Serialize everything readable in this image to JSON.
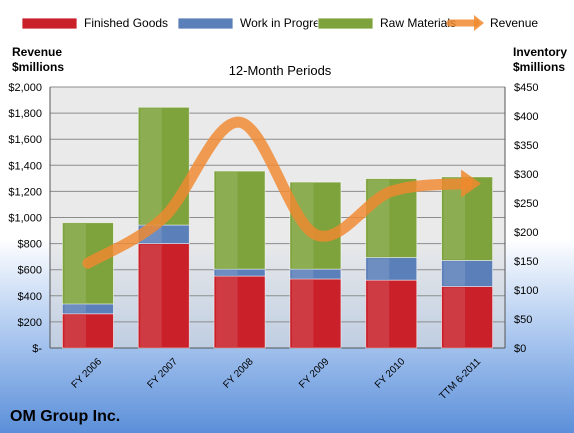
{
  "colors": {
    "finished_goods": "#c9202a",
    "work_in_progress": "#5b7fb9",
    "raw_materials": "#7ea23c",
    "revenue": "#f0892e",
    "bg_top": "#ffffff",
    "bg_bottom": "#5b8fd9"
  },
  "chart_data": {
    "type": "bar",
    "stacked": true,
    "title": "12-Month Periods",
    "company": "OM Group Inc.",
    "categories": [
      "FY 2006",
      "FY 2007",
      "FY 2008",
      "FY 2009",
      "FY 2010",
      "TTM 6-2011"
    ],
    "left_axis": {
      "label_line1": "Revenue",
      "label_line2": "$millions",
      "ticks": [
        "$-",
        "$200",
        "$400",
        "$600",
        "$800",
        "$1,000",
        "$1,200",
        "$1,400",
        "$1,600",
        "$1,800",
        "$2,000"
      ],
      "range": [
        0,
        2000
      ]
    },
    "right_axis": {
      "label_line1": "Inventory",
      "label_line2": "$millions",
      "ticks": [
        "$0",
        "$50",
        "$100",
        "$150",
        "$200",
        "$250",
        "$300",
        "$350",
        "$400",
        "$450"
      ],
      "range": [
        0,
        450
      ]
    },
    "legend": {
      "position": "top",
      "items": [
        {
          "label": "Finished Goods",
          "type": "bar",
          "color_key": "finished_goods"
        },
        {
          "label": "Work in Progress",
          "type": "bar",
          "color_key": "work_in_progress"
        },
        {
          "label": "Raw Materials",
          "type": "bar",
          "color_key": "raw_materials"
        },
        {
          "label": "Revenue",
          "type": "line",
          "color_key": "revenue"
        }
      ]
    },
    "series": [
      {
        "name": "Finished Goods",
        "axis": "right",
        "values": [
          59,
          180,
          124,
          119,
          117,
          106
        ]
      },
      {
        "name": "Work in Progress",
        "axis": "right",
        "values": [
          17,
          32,
          12,
          17,
          39,
          45
        ]
      },
      {
        "name": "Raw Materials",
        "axis": "right",
        "values": [
          140,
          203,
          169,
          150,
          136,
          144
        ]
      },
      {
        "name": "Revenue",
        "axis": "left",
        "type": "line",
        "values": [
          650,
          1000,
          1730,
          870,
          1200,
          1260
        ]
      }
    ],
    "grid": true
  }
}
